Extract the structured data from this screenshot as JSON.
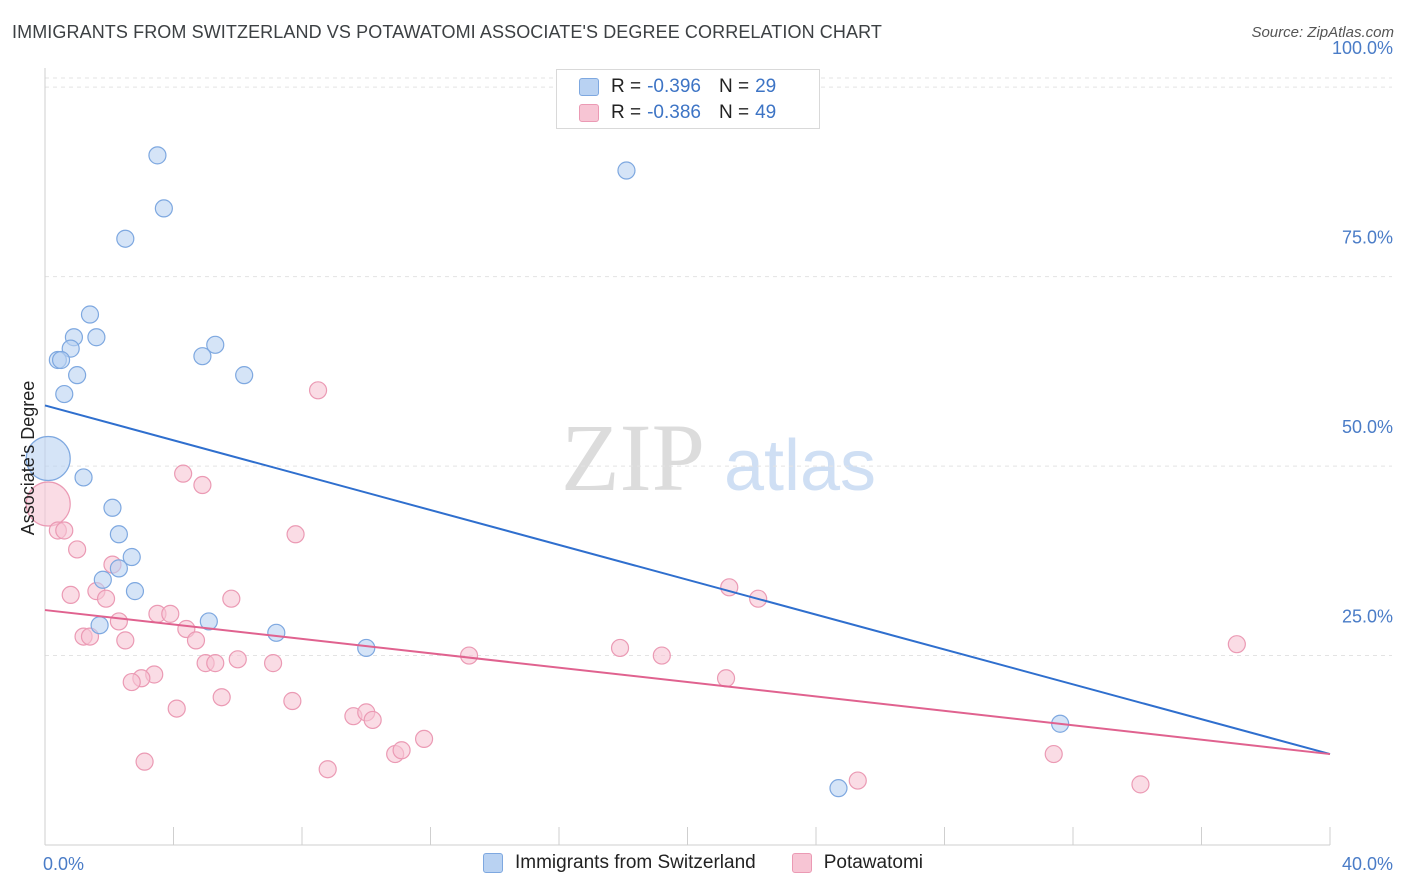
{
  "title": "IMMIGRANTS FROM SWITZERLAND VS POTAWATOMI ASSOCIATE'S DEGREE CORRELATION CHART",
  "source": "Source: ZipAtlas.com",
  "watermark": {
    "zip": "ZIP",
    "atlas": "atlas"
  },
  "colors": {
    "blue_fill": "#b9d2f2",
    "blue_stroke": "#7ea8e0",
    "blue_line": "#2f6fce",
    "pink_fill": "#f7c5d4",
    "pink_stroke": "#eb9ab4",
    "pink_line": "#e0628f",
    "tick_text": "#4a7cc7"
  },
  "legend": {
    "rows": [
      {
        "r_label": "R =",
        "r_value": "-0.396",
        "n_label": "N =",
        "n_value": "29"
      },
      {
        "r_label": "R =",
        "r_value": "-0.386",
        "n_label": "N =",
        "n_value": "49"
      }
    ]
  },
  "bottom_legend": [
    "Immigrants from Switzerland",
    "Potawatomi"
  ],
  "chart_data": {
    "type": "scatter",
    "title": "IMMIGRANTS FROM SWITZERLAND VS POTAWATOMI ASSOCIATE'S DEGREE CORRELATION CHART",
    "xlabel": "",
    "ylabel": "Associate's Degree",
    "xlim": [
      0,
      40
    ],
    "ylim": [
      0,
      102
    ],
    "x_tick_labels": [
      "0.0%",
      "40.0%"
    ],
    "y_ticks": [
      25,
      50,
      75,
      100
    ],
    "y_tick_labels": [
      "25.0%",
      "50.0%",
      "75.0%",
      "100.0%"
    ],
    "grid": true,
    "series": [
      {
        "name": "Immigrants from Switzerland",
        "r": -0.396,
        "n": 29,
        "trend": {
          "x0": 0,
          "y0": 58,
          "x1": 40,
          "y1": 12
        },
        "points": [
          {
            "x": 3.5,
            "y": 91
          },
          {
            "x": 3.7,
            "y": 84
          },
          {
            "x": 2.5,
            "y": 80
          },
          {
            "x": 18.1,
            "y": 89
          },
          {
            "x": 1.4,
            "y": 70
          },
          {
            "x": 0.9,
            "y": 67
          },
          {
            "x": 1.6,
            "y": 67
          },
          {
            "x": 0.8,
            "y": 65.5
          },
          {
            "x": 0.4,
            "y": 64
          },
          {
            "x": 0.5,
            "y": 64
          },
          {
            "x": 5.3,
            "y": 66
          },
          {
            "x": 4.9,
            "y": 64.5
          },
          {
            "x": 1.0,
            "y": 62
          },
          {
            "x": 6.2,
            "y": 62
          },
          {
            "x": 0.6,
            "y": 59.5
          },
          {
            "x": 0.1,
            "y": 51,
            "big": true
          },
          {
            "x": 1.2,
            "y": 48.5
          },
          {
            "x": 2.1,
            "y": 44.5
          },
          {
            "x": 2.3,
            "y": 41
          },
          {
            "x": 2.7,
            "y": 38
          },
          {
            "x": 2.3,
            "y": 36.5
          },
          {
            "x": 1.8,
            "y": 35
          },
          {
            "x": 2.8,
            "y": 33.5
          },
          {
            "x": 5.1,
            "y": 29.5
          },
          {
            "x": 1.7,
            "y": 29
          },
          {
            "x": 7.2,
            "y": 28
          },
          {
            "x": 10.0,
            "y": 26
          },
          {
            "x": 31.6,
            "y": 16
          },
          {
            "x": 24.7,
            "y": 7.5
          }
        ]
      },
      {
        "name": "Potawatomi",
        "r": -0.386,
        "n": 49,
        "trend": {
          "x0": 0,
          "y0": 31,
          "x1": 40,
          "y1": 12
        },
        "points": [
          {
            "x": 0.1,
            "y": 45,
            "big": true
          },
          {
            "x": 8.5,
            "y": 60
          },
          {
            "x": 4.3,
            "y": 49
          },
          {
            "x": 4.9,
            "y": 47.5
          },
          {
            "x": 0.4,
            "y": 41.5
          },
          {
            "x": 0.6,
            "y": 41.5
          },
          {
            "x": 7.8,
            "y": 41
          },
          {
            "x": 1.0,
            "y": 39
          },
          {
            "x": 2.1,
            "y": 37
          },
          {
            "x": 1.6,
            "y": 33.5
          },
          {
            "x": 0.8,
            "y": 33
          },
          {
            "x": 1.9,
            "y": 32.5
          },
          {
            "x": 5.8,
            "y": 32.5
          },
          {
            "x": 21.3,
            "y": 34
          },
          {
            "x": 22.2,
            "y": 32.5
          },
          {
            "x": 3.5,
            "y": 30.5
          },
          {
            "x": 3.9,
            "y": 30.5
          },
          {
            "x": 2.3,
            "y": 29.5
          },
          {
            "x": 4.4,
            "y": 28.5
          },
          {
            "x": 1.2,
            "y": 27.5
          },
          {
            "x": 1.4,
            "y": 27.5
          },
          {
            "x": 4.7,
            "y": 27
          },
          {
            "x": 2.5,
            "y": 27
          },
          {
            "x": 17.9,
            "y": 26
          },
          {
            "x": 19.2,
            "y": 25
          },
          {
            "x": 13.2,
            "y": 25
          },
          {
            "x": 37.1,
            "y": 26.5
          },
          {
            "x": 6.0,
            "y": 24.5
          },
          {
            "x": 7.1,
            "y": 24
          },
          {
            "x": 5.0,
            "y": 24
          },
          {
            "x": 5.3,
            "y": 24
          },
          {
            "x": 3.4,
            "y": 22.5
          },
          {
            "x": 3.0,
            "y": 22
          },
          {
            "x": 2.7,
            "y": 21.5
          },
          {
            "x": 21.2,
            "y": 22
          },
          {
            "x": 5.5,
            "y": 19.5
          },
          {
            "x": 7.7,
            "y": 19
          },
          {
            "x": 4.1,
            "y": 18
          },
          {
            "x": 9.6,
            "y": 17
          },
          {
            "x": 10.0,
            "y": 17.5
          },
          {
            "x": 10.2,
            "y": 16.5
          },
          {
            "x": 11.8,
            "y": 14
          },
          {
            "x": 10.9,
            "y": 12
          },
          {
            "x": 11.1,
            "y": 12.5
          },
          {
            "x": 31.4,
            "y": 12
          },
          {
            "x": 3.1,
            "y": 11
          },
          {
            "x": 8.8,
            "y": 10
          },
          {
            "x": 25.3,
            "y": 8.5
          },
          {
            "x": 34.1,
            "y": 8
          }
        ]
      }
    ]
  }
}
